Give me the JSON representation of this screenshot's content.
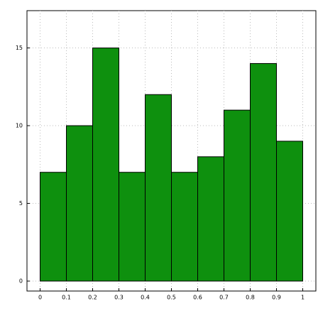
{
  "chart_data": {
    "type": "histogram",
    "bins": [
      0,
      0.1,
      0.2,
      0.3,
      0.4,
      0.5,
      0.6,
      0.7,
      0.8,
      0.9,
      1
    ],
    "values": [
      7,
      10,
      15,
      7,
      12,
      7,
      8,
      11,
      14,
      9
    ],
    "color": "#0e900e",
    "xlim": [
      -0.05,
      1.05
    ],
    "ylim": [
      -0.64,
      17.4
    ],
    "xticks": [
      0,
      0.1,
      0.2,
      0.3,
      0.4,
      0.5,
      0.6,
      0.7,
      0.8,
      0.9,
      1
    ],
    "yticks": [
      0,
      5,
      10,
      15
    ],
    "grid": true
  }
}
